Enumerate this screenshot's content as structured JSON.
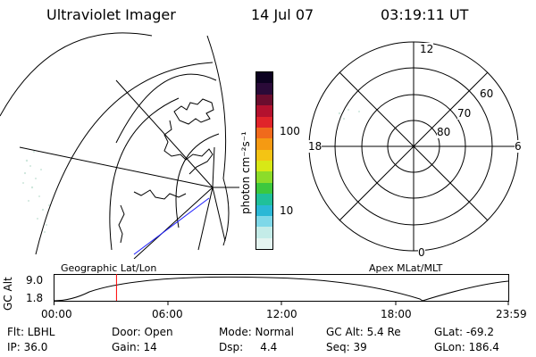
{
  "header": {
    "instrument": "Ultraviolet Imager",
    "date": "14 Jul 07",
    "time": "03:19:11 UT"
  },
  "colorbar": {
    "label": "photon cm⁻²s⁻¹",
    "tick_high": "100",
    "tick_low": "10",
    "colors": [
      "#0c0220",
      "#2a0a38",
      "#6b0d2e",
      "#b3112e",
      "#e0242a",
      "#f06a1c",
      "#f59a12",
      "#f4c414",
      "#d8e816",
      "#8cdc2a",
      "#3cc83e",
      "#20c09a",
      "#2bb8d6",
      "#7fd8e8",
      "#c4ece8",
      "#e4f4f0"
    ]
  },
  "map_left": {
    "label": "Geographic Lat/Lon"
  },
  "polar_right": {
    "label": "Apex MLat/MLT",
    "mlt_top": "12",
    "mlt_left": "18",
    "mlt_right": "6",
    "mlt_bottom": "0",
    "lat_60": "60",
    "lat_70": "70",
    "lat_80": "80"
  },
  "altitude_plot": {
    "ylabel": "GC Alt",
    "ytick_high": "9.0",
    "ytick_low": "1.8",
    "xticks": [
      "00:00",
      "06:00",
      "12:00",
      "18:00",
      "23:59"
    ],
    "current_time_hours": 3.32,
    "marker_color": "#ff0000"
  },
  "status": {
    "flt": "Flt: LBHL",
    "ip": "IP: 36.0",
    "door": "Door: Open",
    "gain": "Gain: 14",
    "mode": "Mode: Normal",
    "dsp": "Dsp:     4.4",
    "gcalt": "GC Alt: 5.4 Re",
    "seq": "Seq: 39",
    "glat": "GLat: -69.2",
    "glon": "GLon: 186.4"
  }
}
